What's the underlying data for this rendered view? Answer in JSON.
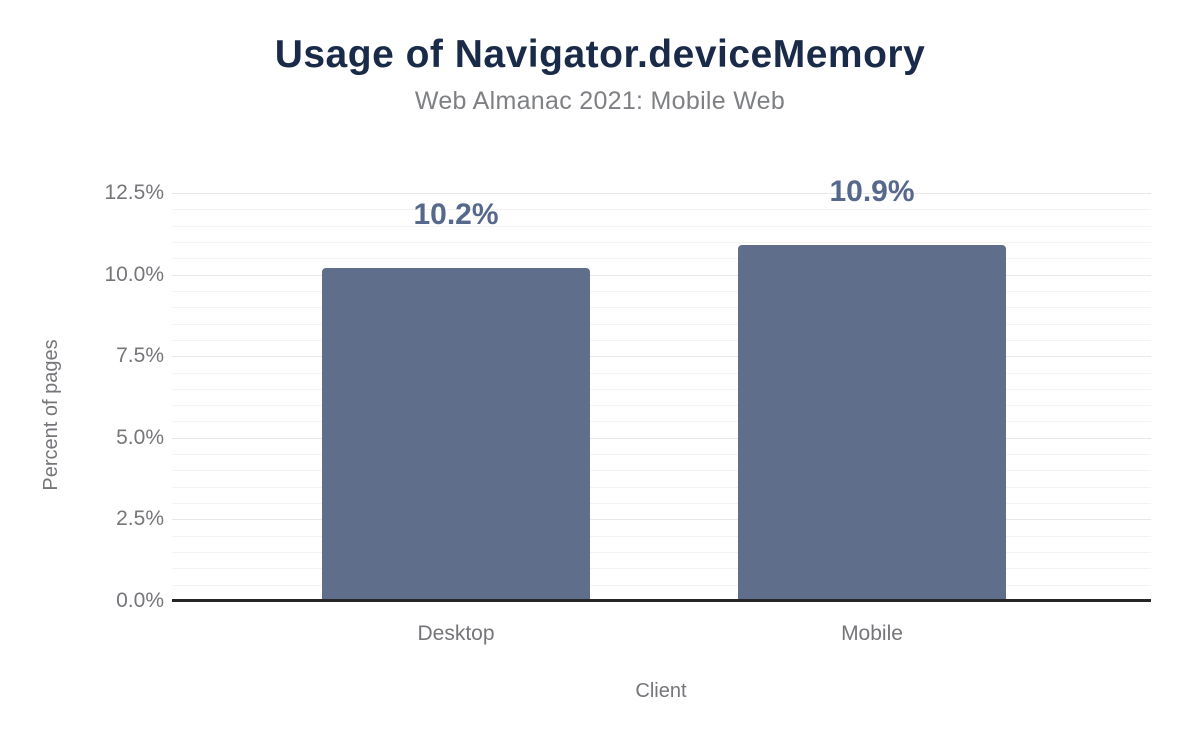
{
  "chart_data": {
    "type": "bar",
    "title": "Usage of Navigator.deviceMemory",
    "subtitle": "Web Almanac 2021: Mobile Web",
    "xlabel": "Client",
    "ylabel": "Percent of pages",
    "categories": [
      "Desktop",
      "Mobile"
    ],
    "values": [
      10.2,
      10.9
    ],
    "value_labels": [
      "10.2%",
      "10.9%"
    ],
    "ylim": [
      0,
      12.5
    ],
    "y_ticks": [
      {
        "value": 0,
        "label": "0.0%"
      },
      {
        "value": 2.5,
        "label": "2.5%"
      },
      {
        "value": 5,
        "label": "5.0%"
      },
      {
        "value": 7.5,
        "label": "7.5%"
      },
      {
        "value": 10,
        "label": "10.0%"
      },
      {
        "value": 12.5,
        "label": "12.5%"
      }
    ],
    "minor_tick_step": 0.5,
    "grid": "on",
    "legend": "none",
    "colors": {
      "bar": "#5f6e8a",
      "value_label": "#56688c",
      "title": "#1a2b49",
      "subtitle": "#7f8084",
      "axis_text": "#75757a",
      "axis_line": "#262626",
      "major_gridline": "#e8e8e8",
      "minor_gridline": "#f3f3f3",
      "background": "#ffffff"
    }
  }
}
